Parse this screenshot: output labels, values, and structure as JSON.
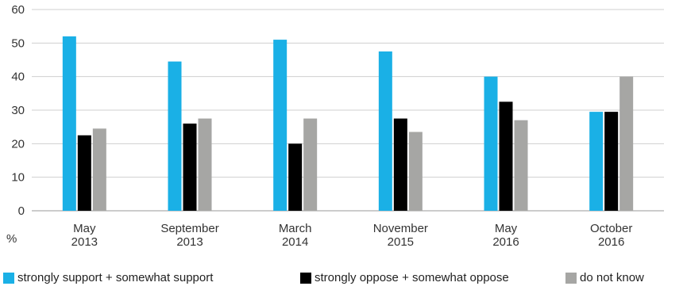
{
  "chart_data": {
    "type": "bar",
    "categories": [
      [
        "May",
        "2013"
      ],
      [
        "September",
        "2013"
      ],
      [
        "March",
        "2014"
      ],
      [
        "November",
        "2015"
      ],
      [
        "May",
        "2016"
      ],
      [
        "October",
        "2016"
      ]
    ],
    "series": [
      {
        "name": "strongly support + somewhat support",
        "color": "#1ab0e6",
        "values": [
          52,
          44.5,
          51,
          47.5,
          40,
          29.5
        ]
      },
      {
        "name": "strongly oppose + somewhat oppose",
        "color": "#000000",
        "values": [
          22.5,
          26,
          20,
          27.5,
          32.5,
          29.5
        ]
      },
      {
        "name": "do not know",
        "color": "#a6a6a4",
        "values": [
          24.5,
          27.5,
          27.5,
          23.5,
          27,
          40
        ]
      }
    ],
    "ylim": [
      0,
      60
    ],
    "yticks": [
      0,
      10,
      20,
      30,
      40,
      50,
      60
    ],
    "unit_label": "%",
    "grid": true,
    "legend_position": "bottom"
  }
}
